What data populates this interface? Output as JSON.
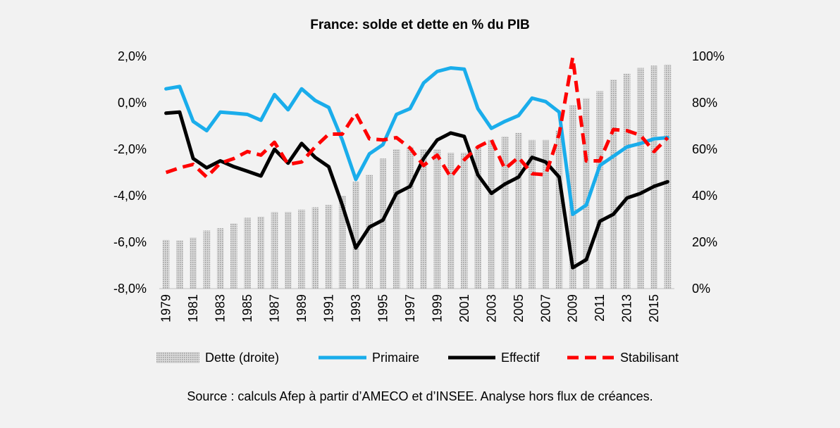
{
  "chart_data": {
    "type": "bar+line",
    "title": "France: solde et dette en % du PIB",
    "source": "Source : calculs Afep à partir d’AMECO et d’INSEE. Analyse hors flux de créances.",
    "x": [
      1979,
      1980,
      1981,
      1982,
      1983,
      1984,
      1985,
      1986,
      1987,
      1988,
      1989,
      1990,
      1991,
      1992,
      1993,
      1994,
      1995,
      1996,
      1997,
      1998,
      1999,
      2000,
      2001,
      2002,
      2003,
      2004,
      2005,
      2006,
      2007,
      2008,
      2009,
      2010,
      2011,
      2012,
      2013,
      2014,
      2015,
      2016
    ],
    "x_tick_labels": [
      "1979",
      "1981",
      "1983",
      "1985",
      "1987",
      "1989",
      "1991",
      "1993",
      "1995",
      "1997",
      "1999",
      "2001",
      "2003",
      "2005",
      "2007",
      "2009",
      "2011",
      "2013",
      "2015"
    ],
    "y_left": {
      "min": -8,
      "max": 2,
      "ticks": [
        "-8,0%",
        "-6,0%",
        "-4,0%",
        "-2,0%",
        "0,0%",
        "2,0%"
      ]
    },
    "y_right": {
      "min": 0,
      "max": 100,
      "ticks": [
        "0%",
        "20%",
        "40%",
        "60%",
        "80%",
        "100%"
      ]
    },
    "series": [
      {
        "name": "Dette (droite)",
        "type": "bar",
        "axis": "right",
        "color": "#c8c8c8",
        "values": [
          21,
          20.7,
          22,
          25,
          26,
          28,
          30.5,
          31,
          33,
          33,
          34,
          35,
          36,
          40,
          46,
          49,
          56,
          60,
          61,
          60,
          60,
          58.5,
          58.5,
          60.5,
          64,
          65.5,
          67,
          64,
          64,
          68,
          79,
          82,
          85,
          90,
          92.5,
          95,
          96,
          96.5
        ]
      },
      {
        "name": "Primaire",
        "type": "line",
        "axis": "left",
        "color": "#1aadeb",
        "values": [
          0.6,
          0.7,
          -0.8,
          -1.2,
          -0.4,
          -0.45,
          -0.5,
          -0.75,
          0.35,
          -0.3,
          0.6,
          0.1,
          -0.2,
          -1.6,
          -3.3,
          -2.2,
          -1.8,
          -0.5,
          -0.25,
          0.85,
          1.35,
          1.5,
          1.45,
          -0.25,
          -1.1,
          -0.8,
          -0.55,
          0.2,
          0.05,
          -0.4,
          -4.8,
          -4.4,
          -2.7,
          -2.3,
          -1.9,
          -1.75,
          -1.55,
          -1.5
        ]
      },
      {
        "name": "Effectif",
        "type": "line",
        "axis": "left",
        "color": "#000000",
        "values": [
          -0.45,
          -0.4,
          -2.4,
          -2.8,
          -2.5,
          -2.75,
          -2.95,
          -3.15,
          -2.0,
          -2.6,
          -1.75,
          -2.35,
          -2.75,
          -4.4,
          -6.25,
          -5.35,
          -5.05,
          -3.9,
          -3.6,
          -2.4,
          -1.6,
          -1.3,
          -1.45,
          -3.1,
          -3.9,
          -3.5,
          -3.2,
          -2.35,
          -2.55,
          -3.2,
          -7.1,
          -6.75,
          -5.1,
          -4.8,
          -4.1,
          -3.9,
          -3.6,
          -3.4
        ]
      },
      {
        "name": "Stabilisant",
        "type": "line",
        "axis": "left",
        "color": "#ff0000",
        "dashed": true,
        "values": [
          -3.0,
          -2.8,
          -2.65,
          -3.2,
          -2.6,
          -2.4,
          -2.1,
          -2.25,
          -1.7,
          -2.65,
          -2.55,
          -1.9,
          -1.35,
          -1.35,
          -0.45,
          -1.55,
          -1.6,
          -1.5,
          -1.95,
          -2.7,
          -2.25,
          -3.2,
          -2.45,
          -1.9,
          -1.6,
          -2.85,
          -2.35,
          -3.05,
          -3.1,
          -1.35,
          1.95,
          -2.5,
          -2.5,
          -1.15,
          -1.2,
          -1.4,
          -2.1,
          -1.5
        ]
      }
    ],
    "legend": {
      "position": "bottom"
    },
    "grid": false
  }
}
